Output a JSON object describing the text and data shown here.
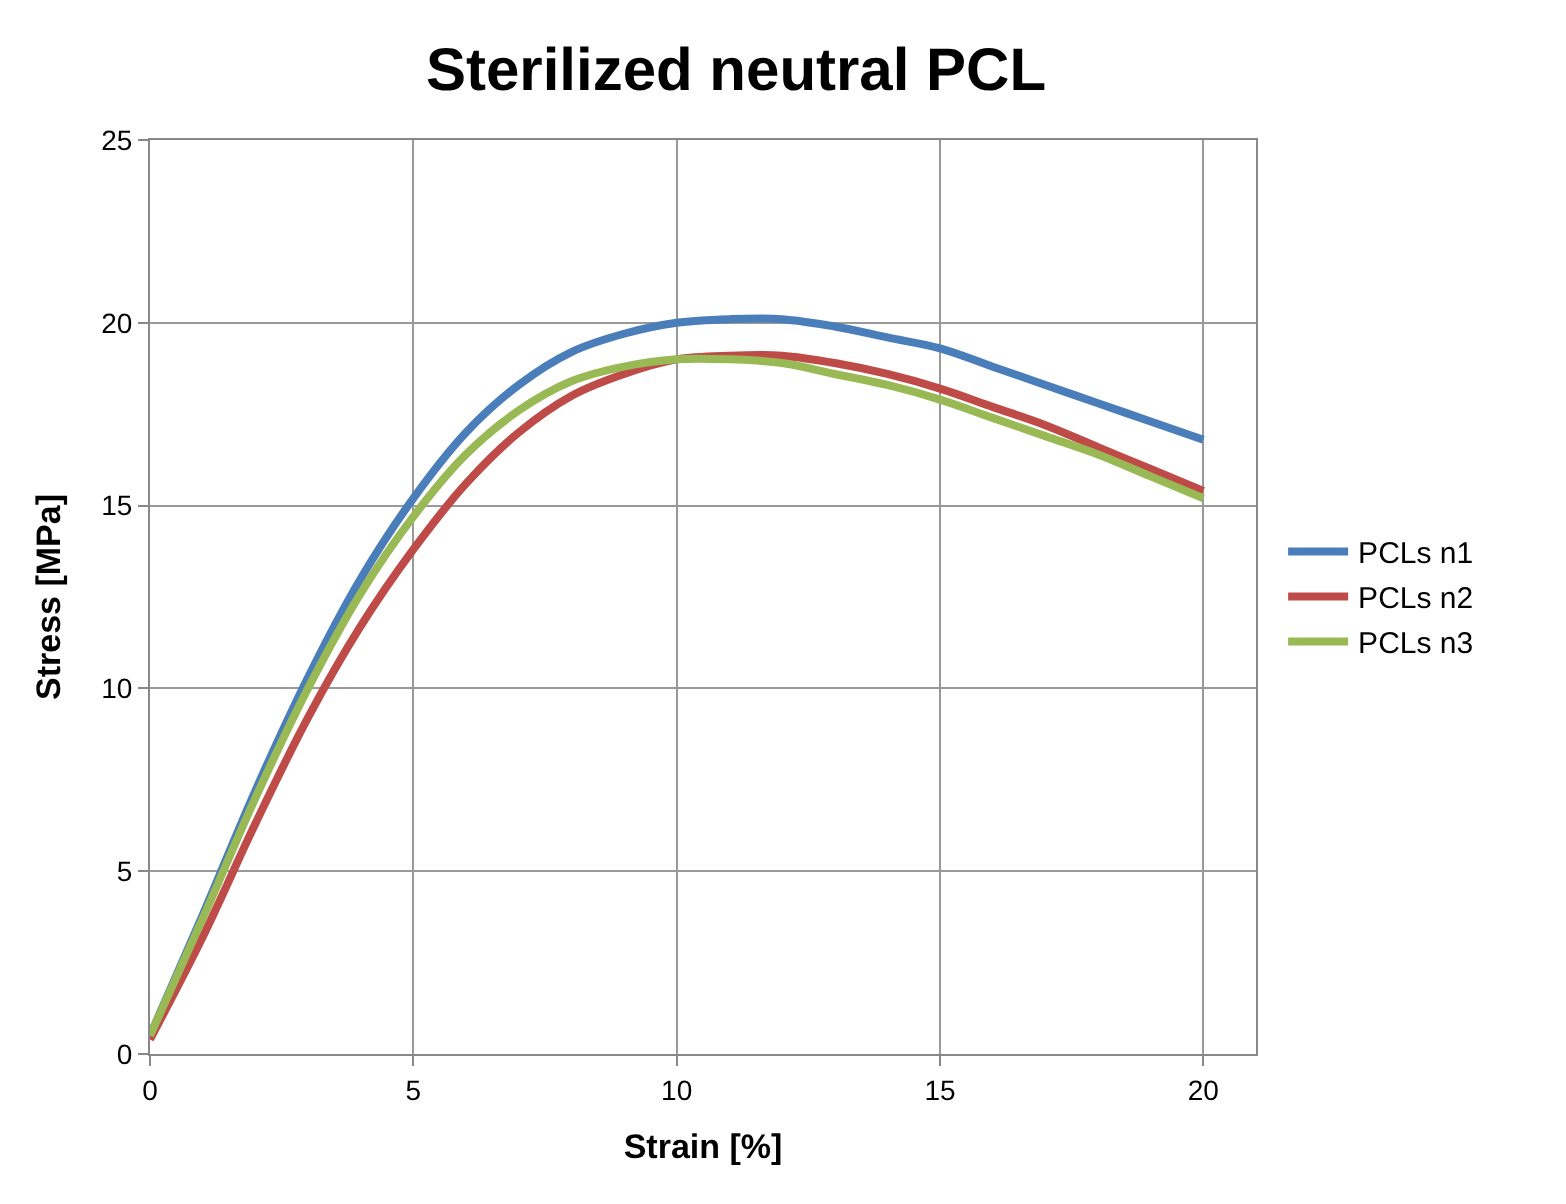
{
  "chart_data": {
    "type": "line",
    "title": "Sterilized neutral PCL",
    "xlabel": "Strain [%]",
    "ylabel": "Stress [MPa]",
    "x": [
      0,
      1,
      2,
      3,
      4,
      5,
      6,
      7,
      8,
      9,
      10,
      11,
      12,
      13,
      14,
      15,
      16,
      17,
      18,
      19,
      20
    ],
    "series": [
      {
        "name": "PCLs n1",
        "color": "#4a7ebb",
        "values": [
          0.5,
          3.8,
          7.2,
          10.3,
          13.0,
          15.2,
          17.0,
          18.3,
          19.2,
          19.7,
          20.0,
          20.1,
          20.1,
          19.9,
          19.6,
          19.3,
          18.8,
          18.3,
          17.8,
          17.3,
          16.8
        ]
      },
      {
        "name": "PCLs n2",
        "color": "#be4b48",
        "values": [
          0.4,
          3.2,
          6.3,
          9.2,
          11.7,
          13.8,
          15.6,
          17.0,
          18.0,
          18.6,
          19.0,
          19.1,
          19.1,
          18.9,
          18.6,
          18.2,
          17.7,
          17.2,
          16.6,
          16.0,
          15.4
        ]
      },
      {
        "name": "PCLs n3",
        "color": "#98b954",
        "values": [
          0.5,
          3.7,
          7.0,
          10.0,
          12.6,
          14.7,
          16.4,
          17.6,
          18.4,
          18.8,
          19.0,
          19.0,
          18.9,
          18.6,
          18.3,
          17.9,
          17.4,
          16.9,
          16.4,
          15.8,
          15.2
        ]
      }
    ],
    "xlim": [
      0,
      21
    ],
    "xticks": [
      0,
      5,
      10,
      15,
      20
    ],
    "ylim": [
      0,
      25
    ],
    "yticks": [
      0,
      5,
      10,
      15,
      20,
      25
    ],
    "grid": true,
    "legend": "right",
    "marker": "none",
    "line_style": "solid"
  }
}
